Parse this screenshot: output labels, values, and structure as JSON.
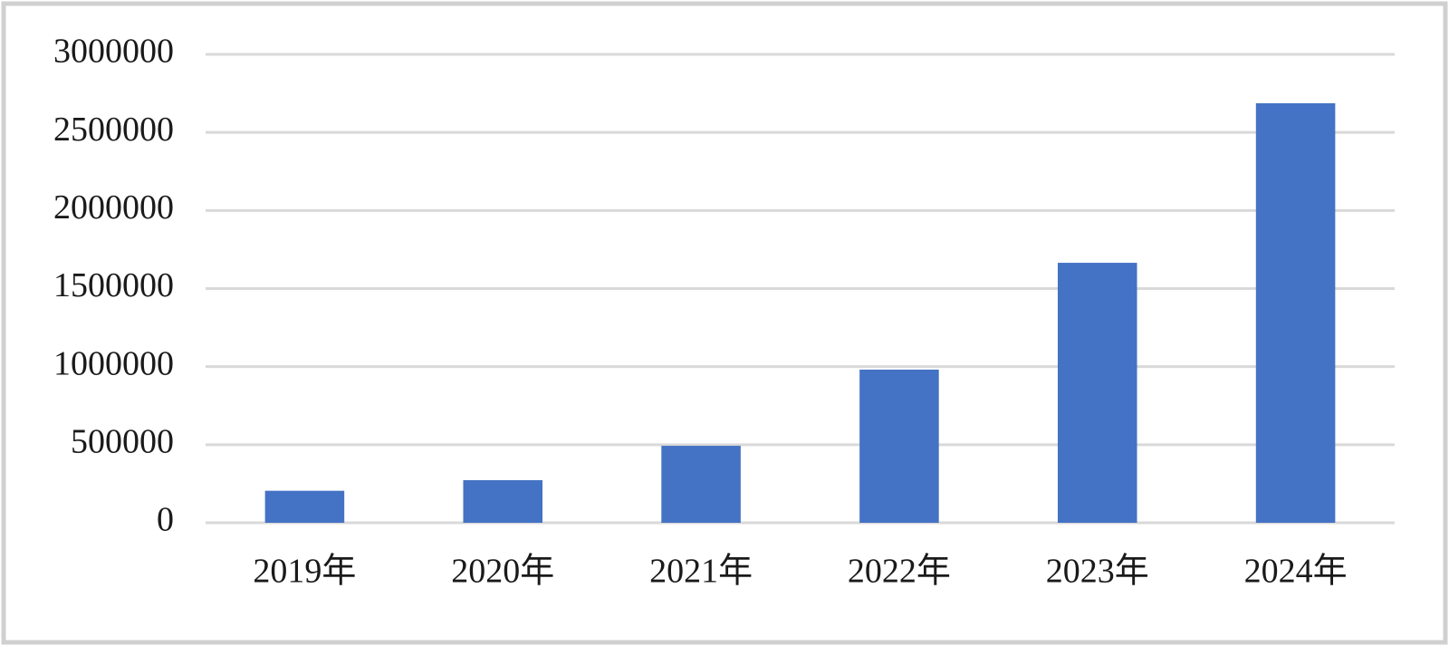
{
  "chart_data": {
    "type": "bar",
    "categories": [
      "2019年",
      "2020年",
      "2021年",
      "2022年",
      "2023年",
      "2024年"
    ],
    "values": [
      205000,
      273000,
      493000,
      981000,
      1665000,
      2687000
    ],
    "color": "#4472c4",
    "ylim": [
      0,
      3000000
    ],
    "yticks": [
      0,
      500000,
      1000000,
      1500000,
      2000000,
      2500000,
      3000000
    ],
    "grid": true
  }
}
